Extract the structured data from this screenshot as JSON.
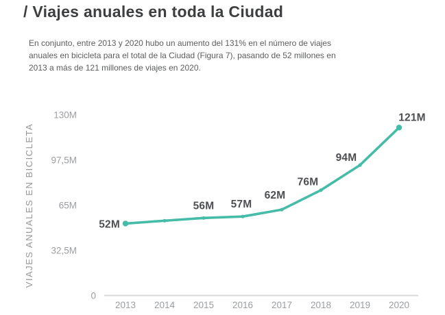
{
  "page": {
    "background": "#ffffff"
  },
  "header": {
    "title": "/ Viajes anuales en toda la Ciudad"
  },
  "intro": {
    "text": "En conjunto, entre 2013 y 2020 hubo un aumento del 131% en el número de viajes anuales en bicicleta para el total de la Ciudad (Figura 7), pasando de 52 millones en 2013 a más de 121 millones de viajes en 2020."
  },
  "chart_data": {
    "type": "line",
    "title": "",
    "ylabel": "VIAJES ANUALES EN BICICLETA",
    "xlabel": "",
    "categories": [
      "2013",
      "2014",
      "2015",
      "2016",
      "2017",
      "2018",
      "2019",
      "2020"
    ],
    "series": [
      {
        "name": "Viajes anuales en bicicleta",
        "values": [
          52,
          54,
          56,
          57,
          62,
          76,
          94,
          121
        ]
      }
    ],
    "point_labels": [
      "52M",
      null,
      "56M",
      "57M",
      "62M",
      "76M",
      "94M",
      "121M"
    ],
    "y_ticks": [
      {
        "label": "130M",
        "value": 130
      },
      {
        "label": "97,5M",
        "value": 97.5
      },
      {
        "label": "65M",
        "value": 65
      },
      {
        "label": "32,5M",
        "value": 32.5
      },
      {
        "label": "0",
        "value": 0
      }
    ],
    "ylim": [
      0,
      130
    ],
    "grid": false,
    "legend_position": "none",
    "colors": {
      "line": "#45bca7",
      "point_label": "#4d4f52",
      "tick_label": "#9b9ea1",
      "axis_title": "#949698",
      "axis_line": "#d8d9da"
    }
  }
}
